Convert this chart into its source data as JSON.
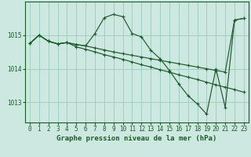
{
  "title": "Graphe pression niveau de la mer (hPa)",
  "background_color": "#cce8e0",
  "grid_color": "#99ccbb",
  "line_color": "#1a5c28",
  "xlim": [
    -0.5,
    23.5
  ],
  "ylim": [
    1012.4,
    1016.0
  ],
  "yticks": [
    1013,
    1014,
    1015
  ],
  "xticks": [
    0,
    1,
    2,
    3,
    4,
    5,
    6,
    7,
    8,
    9,
    10,
    11,
    12,
    13,
    14,
    15,
    16,
    17,
    18,
    19,
    20,
    21,
    22,
    23
  ],
  "series1_x": [
    0,
    1,
    2,
    3,
    4,
    5,
    6,
    7,
    8,
    9,
    10,
    11,
    12,
    13,
    14,
    15,
    16,
    17,
    18,
    19,
    20,
    21,
    22,
    23
  ],
  "series1_y": [
    1014.75,
    1015.0,
    1014.82,
    1014.74,
    1014.78,
    1014.72,
    1014.68,
    1015.05,
    1015.52,
    1015.62,
    1015.55,
    1015.05,
    1014.95,
    1014.55,
    1014.3,
    1013.95,
    1013.55,
    1013.2,
    1012.95,
    1012.65,
    1014.0,
    1012.85,
    1015.45,
    1015.5
  ],
  "series2_x": [
    0,
    1,
    2,
    3,
    4,
    5,
    6,
    7,
    8,
    9,
    10,
    11,
    12,
    13,
    14,
    15,
    16,
    17,
    18,
    19,
    20,
    21,
    22,
    23
  ],
  "series2_y": [
    1014.75,
    1015.0,
    1014.82,
    1014.74,
    1014.78,
    1014.72,
    1014.68,
    1014.62,
    1014.56,
    1014.5,
    1014.45,
    1014.4,
    1014.35,
    1014.3,
    1014.25,
    1014.2,
    1014.15,
    1014.1,
    1014.05,
    1014.0,
    1013.95,
    1013.9,
    1015.45,
    1015.5
  ],
  "series3_x": [
    0,
    1,
    2,
    3,
    4,
    5,
    6,
    7,
    8,
    9,
    10,
    11,
    12,
    13,
    14,
    15,
    16,
    17,
    18,
    19,
    20,
    21,
    22,
    23
  ],
  "series3_y": [
    1014.75,
    1015.0,
    1014.82,
    1014.74,
    1014.78,
    1014.65,
    1014.58,
    1014.5,
    1014.42,
    1014.35,
    1014.28,
    1014.2,
    1014.12,
    1014.05,
    1013.97,
    1013.9,
    1013.82,
    1013.75,
    1013.68,
    1013.6,
    1013.52,
    1013.45,
    1013.38,
    1013.3
  ],
  "tick_fontsize": 5.5,
  "title_fontsize": 6.5
}
